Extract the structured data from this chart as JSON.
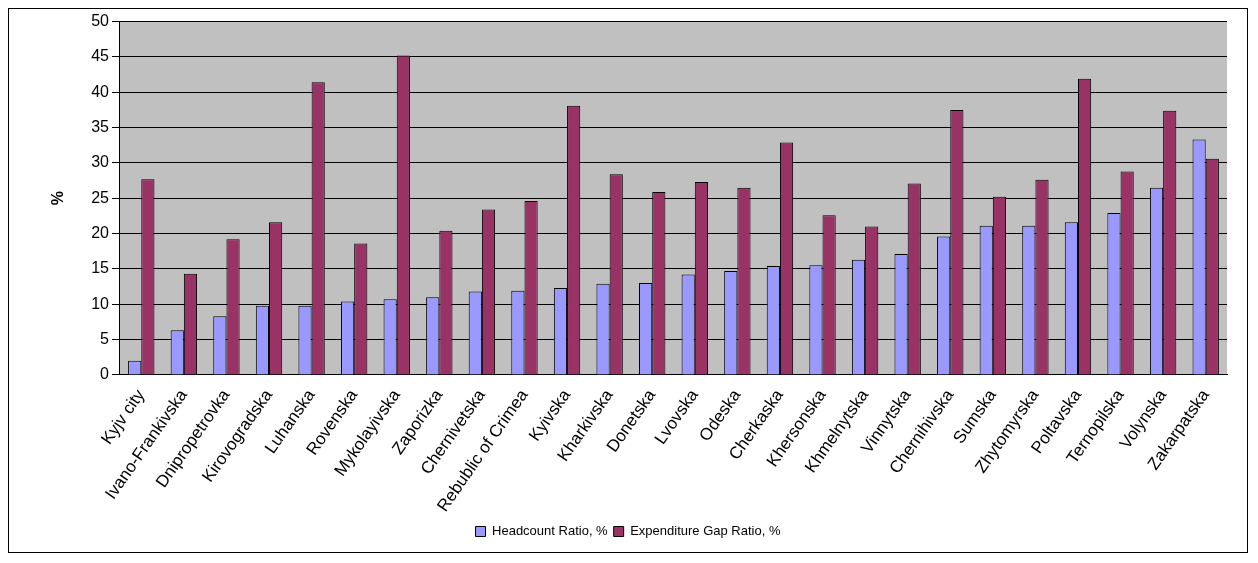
{
  "chart_data": {
    "type": "bar",
    "ylabel": "%",
    "categories": [
      "Kyjv city",
      "Ivano-Frankivska",
      "Dnipropetrovka",
      "Kirovogradska",
      "Luhanska",
      "Rovenska",
      "Mykolayivska",
      "Zaporizka",
      "Chernivetska",
      "Rebublic of Crimea",
      "Kyivska",
      "Kharkivska",
      "Donetska",
      "Lvovska",
      "Odeska",
      "Cherkaska",
      "Khersonska",
      "Khmelnytska",
      "Vinnytska",
      "Chernihivska",
      "Sumska",
      "Zhytomyrska",
      "Poltavska",
      "Ternopilska",
      "Volynska",
      "Zakarpatska"
    ],
    "series": [
      {
        "name": "Headcount Ratio, %",
        "color": "#9999ff",
        "values": [
          2,
          6.3,
          8.3,
          9.8,
          9.8,
          10.4,
          10.7,
          11,
          11.8,
          11.9,
          12.3,
          12.9,
          13,
          14.2,
          14.7,
          15.4,
          15.5,
          16.3,
          17.1,
          19.6,
          21.1,
          21.1,
          21.6,
          22.9,
          26.5,
          33.3
        ]
      },
      {
        "name": "Expenditure Gap Ratio, %",
        "color": "#993366",
        "values": [
          27.7,
          14.3,
          19.2,
          21.6,
          41.4,
          18.6,
          45.2,
          20.4,
          23.4,
          24.6,
          38.1,
          28.4,
          25.9,
          27.3,
          26.5,
          32.9,
          22.6,
          21,
          27.1,
          37.5,
          25.2,
          27.6,
          41.9,
          28.8,
          37.4,
          30.6
        ]
      }
    ],
    "ylim": [
      0,
      50
    ],
    "yticks": [
      0,
      5,
      10,
      15,
      20,
      25,
      30,
      35,
      40,
      45,
      50
    ],
    "grid": "y",
    "legend": "bottom"
  }
}
